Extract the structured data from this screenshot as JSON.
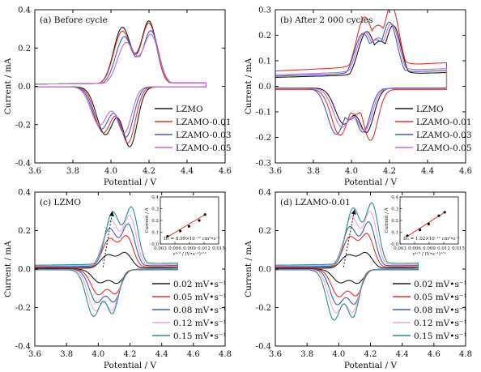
{
  "colors": {
    "LZMO": "#1a1a1a",
    "LZAMO-0.01": "#e0342b",
    "LZAMO-0.03": "#3a5ec0",
    "LZAMO-0.05": "#c46ad6",
    "rate_0.02": "#1a1a1a",
    "rate_0.05": "#e0342b",
    "rate_0.08": "#3a5ec0",
    "rate_0.12": "#e8a8d8",
    "rate_0.15": "#2f8f8f",
    "fit_line": "#e0342b",
    "fit_points": "#111111"
  },
  "chart_data": [
    {
      "id": "a",
      "type": "line",
      "title": "(a) Before cycle",
      "xlabel": "Potential / V",
      "ylabel": "Current / mA",
      "xlim": [
        3.6,
        4.6
      ],
      "ylim": [
        -0.4,
        0.4
      ],
      "xticks": [
        "3.6",
        "3.8",
        "4.0",
        "4.2",
        "4.4",
        "4.6"
      ],
      "yticks": [
        "-0.4",
        "-0.2",
        "0.0",
        "0.2",
        "0.4"
      ],
      "legend_position": "bottom-right",
      "series": [
        {
          "name": "LZMO",
          "color_key": "LZMO",
          "anodic_peaks": [
            [
              4.06,
              0.3
            ],
            [
              4.2,
              0.33
            ]
          ],
          "anodic_valley": 0.13,
          "anodic_end": 4.5,
          "cathodic_peaks": [
            [
              3.97,
              -0.25
            ],
            [
              4.1,
              -0.31
            ]
          ],
          "cathodic_valley": -0.12,
          "cathodic_end": 3.6,
          "baseline": 0.012
        },
        {
          "name": "LZAMO-0.01",
          "color_key": "LZAMO-0.01",
          "anodic_peaks": [
            [
              4.06,
              0.28
            ],
            [
              4.2,
              0.32
            ]
          ],
          "anodic_valley": 0.14,
          "anodic_end": 4.5,
          "cathodic_peaks": [
            [
              3.96,
              -0.24
            ],
            [
              4.09,
              -0.29
            ]
          ],
          "cathodic_valley": -0.13,
          "cathodic_end": 3.6,
          "baseline": 0.012
        },
        {
          "name": "LZAMO-0.03",
          "color_key": "LZAMO-0.03",
          "anodic_peaks": [
            [
              4.07,
              0.25
            ],
            [
              4.21,
              0.28
            ]
          ],
          "anodic_valley": 0.14,
          "anodic_end": 4.5,
          "cathodic_peaks": [
            [
              3.95,
              -0.22
            ],
            [
              4.08,
              -0.26
            ]
          ],
          "cathodic_valley": -0.13,
          "cathodic_end": 3.6,
          "baseline": 0.012
        },
        {
          "name": "LZAMO-0.05",
          "color_key": "LZAMO-0.05",
          "anodic_peaks": [
            [
              4.08,
              0.22
            ],
            [
              4.21,
              0.26
            ]
          ],
          "anodic_valley": 0.14,
          "anodic_end": 4.5,
          "cathodic_peaks": [
            [
              3.94,
              -0.2
            ],
            [
              4.07,
              -0.24
            ]
          ],
          "cathodic_valley": -0.13,
          "cathodic_end": 3.6,
          "baseline": 0.012
        }
      ]
    },
    {
      "id": "b",
      "type": "line",
      "title": "(b) After 2 000 cycles",
      "xlabel": "Potential / V",
      "ylabel": "Current / mA",
      "xlim": [
        3.6,
        4.6
      ],
      "ylim": [
        -0.3,
        0.3
      ],
      "xticks": [
        "3.6",
        "3.8",
        "4.0",
        "4.2",
        "4.4",
        "4.6"
      ],
      "yticks": [
        "-0.3",
        "-0.2",
        "-0.1",
        "0.0",
        "0.1",
        "0.2",
        "0.3"
      ],
      "legend_position": "bottom-right",
      "series": [
        {
          "name": "LZMO",
          "color_key": "LZMO",
          "anodic_peaks": [
            [
              4.08,
              0.19
            ],
            [
              4.22,
              0.21
            ]
          ],
          "anodic_valley": 0.13,
          "anodic_end": 4.5,
          "cathodic_peaks": [
            [
              3.96,
              -0.14
            ],
            [
              4.08,
              -0.17
            ]
          ],
          "cathodic_valley": -0.11,
          "cathodic_end": 3.6,
          "baseline": 0.035
        },
        {
          "name": "LZAMO-0.01",
          "color_key": "LZAMO-0.01",
          "anodic_peaks": [
            [
              4.07,
              0.23
            ],
            [
              4.21,
              0.27
            ]
          ],
          "anodic_valley": 0.16,
          "anodic_end": 4.5,
          "cathodic_peaks": [
            [
              3.94,
              -0.18
            ],
            [
              4.1,
              -0.2
            ]
          ],
          "cathodic_valley": -0.11,
          "cathodic_end": 3.6,
          "baseline": 0.06
        },
        {
          "name": "LZAMO-0.03",
          "color_key": "LZAMO-0.03",
          "anodic_peaks": [
            [
              4.06,
              0.18
            ],
            [
              4.2,
              0.22
            ]
          ],
          "anodic_valley": 0.13,
          "anodic_end": 4.5,
          "cathodic_peaks": [
            [
              3.92,
              -0.18
            ],
            [
              4.06,
              -0.17
            ]
          ],
          "cathodic_valley": -0.13,
          "cathodic_end": 3.6,
          "baseline": 0.04
        },
        {
          "name": "LZAMO-0.05",
          "color_key": "LZAMO-0.05",
          "anodic_peaks": [
            [
              4.07,
              0.18
            ],
            [
              4.21,
              0.21
            ]
          ],
          "anodic_valley": 0.13,
          "anodic_end": 4.5,
          "cathodic_peaks": [
            [
              3.95,
              -0.15
            ],
            [
              4.07,
              -0.16
            ]
          ],
          "cathodic_valley": -0.12,
          "cathodic_end": 3.6,
          "baseline": 0.045
        }
      ]
    },
    {
      "id": "c",
      "type": "line",
      "title": "(c) LZMO",
      "xlabel": "Potential / V",
      "ylabel": "Current / mA",
      "xlim": [
        3.6,
        4.8
      ],
      "ylim": [
        -0.4,
        0.4
      ],
      "xticks": [
        "3.6",
        "3.8",
        "4.0",
        "4.2",
        "4.4",
        "4.6",
        "4.8"
      ],
      "yticks": [
        "-0.4",
        "-0.2",
        "0.0",
        "0.2",
        "0.4"
      ],
      "legend_position": "bottom-right",
      "series": [
        {
          "name": "0.02 mV•s⁻¹",
          "color_key": "rate_0.02",
          "anodic_peaks": [
            [
              4.06,
              0.07
            ],
            [
              4.17,
              0.08
            ]
          ],
          "anodic_valley": 0.03,
          "anodic_end": 4.5,
          "cathodic_peaks": [
            [
              4.01,
              -0.07
            ],
            [
              4.12,
              -0.07
            ]
          ],
          "cathodic_valley": -0.03,
          "cathodic_end": 3.6,
          "baseline": 0.004
        },
        {
          "name": "0.05 mV•s⁻¹",
          "color_key": "rate_0.05",
          "anodic_peaks": [
            [
              4.07,
              0.15
            ],
            [
              4.18,
              0.16
            ]
          ],
          "anodic_valley": 0.07,
          "anodic_end": 4.5,
          "cathodic_peaks": [
            [
              4.0,
              -0.13
            ],
            [
              4.11,
              -0.12
            ]
          ],
          "cathodic_valley": -0.06,
          "cathodic_end": 3.6,
          "baseline": 0.008
        },
        {
          "name": "0.08 mV•s⁻¹",
          "color_key": "rate_0.08",
          "anodic_peaks": [
            [
              4.07,
              0.2
            ],
            [
              4.19,
              0.22
            ]
          ],
          "anodic_valley": 0.1,
          "anodic_end": 4.5,
          "cathodic_peaks": [
            [
              3.99,
              -0.17
            ],
            [
              4.1,
              -0.16
            ]
          ],
          "cathodic_valley": -0.09,
          "cathodic_end": 3.6,
          "baseline": 0.012
        },
        {
          "name": "0.12 mV•s⁻¹",
          "color_key": "rate_0.12",
          "anodic_peaks": [
            [
              4.08,
              0.24
            ],
            [
              4.2,
              0.26
            ]
          ],
          "anodic_valley": 0.13,
          "anodic_end": 4.5,
          "cathodic_peaks": [
            [
              3.98,
              -0.21
            ],
            [
              4.09,
              -0.2
            ]
          ],
          "cathodic_valley": -0.11,
          "cathodic_end": 3.6,
          "baseline": 0.016
        },
        {
          "name": "0.15 mV•s⁻¹",
          "color_key": "rate_0.15",
          "anodic_peaks": [
            [
              4.09,
              0.28
            ],
            [
              4.21,
              0.3
            ]
          ],
          "anodic_valley": 0.15,
          "anodic_end": 4.5,
          "cathodic_peaks": [
            [
              3.97,
              -0.24
            ],
            [
              4.09,
              -0.22
            ]
          ],
          "cathodic_valley": -0.13,
          "cathodic_end": 3.6,
          "baseline": 0.02
        }
      ],
      "arrow": {
        "from": [
          4.03,
          0.01
        ],
        "to": [
          4.09,
          0.3
        ]
      },
      "inset": {
        "type": "scatter",
        "xlabel": "v¹ᐟ² / (V•s⁻¹)¹ᐟ²",
        "ylabel": "Current / A",
        "xlim": [
          0.003,
          0.015
        ],
        "ylim": [
          0.0,
          0.4
        ],
        "xticks": [
          "0.003",
          "0.006",
          "0.009",
          "0.012",
          "0.015"
        ],
        "yticks": [
          "0.0",
          "0.1",
          "0.2",
          "0.3",
          "0.4"
        ],
        "points": [
          [
            0.0045,
            0.065
          ],
          [
            0.0071,
            0.11
          ],
          [
            0.0089,
            0.15
          ],
          [
            0.011,
            0.2
          ],
          [
            0.0122,
            0.25
          ]
        ],
        "fit_line": [
          [
            0.0045,
            0.06
          ],
          [
            0.0122,
            0.25
          ]
        ],
        "annotation": "Dₗᵢ = 8.99×10⁻¹² cm²•s⁻¹"
      }
    },
    {
      "id": "d",
      "type": "line",
      "title": "(d) LZAMO-0.01",
      "xlabel": "Potential / V",
      "ylabel": "Current / mA",
      "xlim": [
        3.6,
        4.8
      ],
      "ylim": [
        -0.4,
        0.4
      ],
      "xticks": [
        "3.6",
        "3.8",
        "4.0",
        "4.2",
        "4.4",
        "4.6",
        "4.8"
      ],
      "yticks": [
        "-0.4",
        "-0.2",
        "0.0",
        "0.2",
        "0.4"
      ],
      "legend_position": "bottom-right",
      "series": [
        {
          "name": "0.02 mV•s⁻¹",
          "color_key": "rate_0.02",
          "anodic_peaks": [
            [
              4.06,
              0.07
            ],
            [
              4.17,
              0.08
            ]
          ],
          "anodic_valley": 0.03,
          "anodic_end": 4.5,
          "cathodic_peaks": [
            [
              4.01,
              -0.07
            ],
            [
              4.12,
              -0.07
            ]
          ],
          "cathodic_valley": -0.03,
          "cathodic_end": 3.6,
          "baseline": 0.004
        },
        {
          "name": "0.05 mV•s⁻¹",
          "color_key": "rate_0.05",
          "anodic_peaks": [
            [
              4.07,
              0.16
            ],
            [
              4.18,
              0.17
            ]
          ],
          "anodic_valley": 0.07,
          "anodic_end": 4.5,
          "cathodic_peaks": [
            [
              4.0,
              -0.14
            ],
            [
              4.11,
              -0.13
            ]
          ],
          "cathodic_valley": -0.06,
          "cathodic_end": 3.6,
          "baseline": 0.008
        },
        {
          "name": "0.08 mV•s⁻¹",
          "color_key": "rate_0.08",
          "anodic_peaks": [
            [
              4.07,
              0.21
            ],
            [
              4.19,
              0.23
            ]
          ],
          "anodic_valley": 0.1,
          "anodic_end": 4.5,
          "cathodic_peaks": [
            [
              3.99,
              -0.18
            ],
            [
              4.1,
              -0.17
            ]
          ],
          "cathodic_valley": -0.09,
          "cathodic_end": 3.6,
          "baseline": 0.012
        },
        {
          "name": "0.12 mV•s⁻¹",
          "color_key": "rate_0.12",
          "anodic_peaks": [
            [
              4.08,
              0.26
            ],
            [
              4.2,
              0.28
            ]
          ],
          "anodic_valley": 0.13,
          "anodic_end": 4.5,
          "cathodic_peaks": [
            [
              3.98,
              -0.22
            ],
            [
              4.09,
              -0.21
            ]
          ],
          "cathodic_valley": -0.11,
          "cathodic_end": 3.6,
          "baseline": 0.016
        },
        {
          "name": "0.15 mV•s⁻¹",
          "color_key": "rate_0.15",
          "anodic_peaks": [
            [
              4.09,
              0.3
            ],
            [
              4.21,
              0.32
            ]
          ],
          "anodic_valley": 0.15,
          "anodic_end": 4.5,
          "cathodic_peaks": [
            [
              3.97,
              -0.26
            ],
            [
              4.09,
              -0.24
            ]
          ],
          "cathodic_valley": -0.13,
          "cathodic_end": 3.6,
          "baseline": 0.02
        }
      ],
      "arrow": {
        "from": [
          4.03,
          0.01
        ],
        "to": [
          4.1,
          0.31
        ]
      },
      "inset": {
        "type": "scatter",
        "xlabel": "v¹ᐟ² / (V•s⁻¹)¹ᐟ²",
        "ylabel": "Current / A",
        "xlim": [
          0.003,
          0.015
        ],
        "ylim": [
          0.0,
          0.4
        ],
        "xticks": [
          "0.003",
          "0.006",
          "0.009",
          "0.012",
          "0.015"
        ],
        "yticks": [
          "0.0",
          "0.1",
          "0.2",
          "0.3",
          "0.4"
        ],
        "points": [
          [
            0.0045,
            0.07
          ],
          [
            0.0071,
            0.12
          ],
          [
            0.0089,
            0.17
          ],
          [
            0.011,
            0.24
          ],
          [
            0.0122,
            0.27
          ]
        ],
        "fit_line": [
          [
            0.0045,
            0.065
          ],
          [
            0.0122,
            0.27
          ]
        ],
        "annotation": "Dₗᵢ = 1.02×10⁻¹¹ cm²•s⁻¹"
      }
    }
  ]
}
